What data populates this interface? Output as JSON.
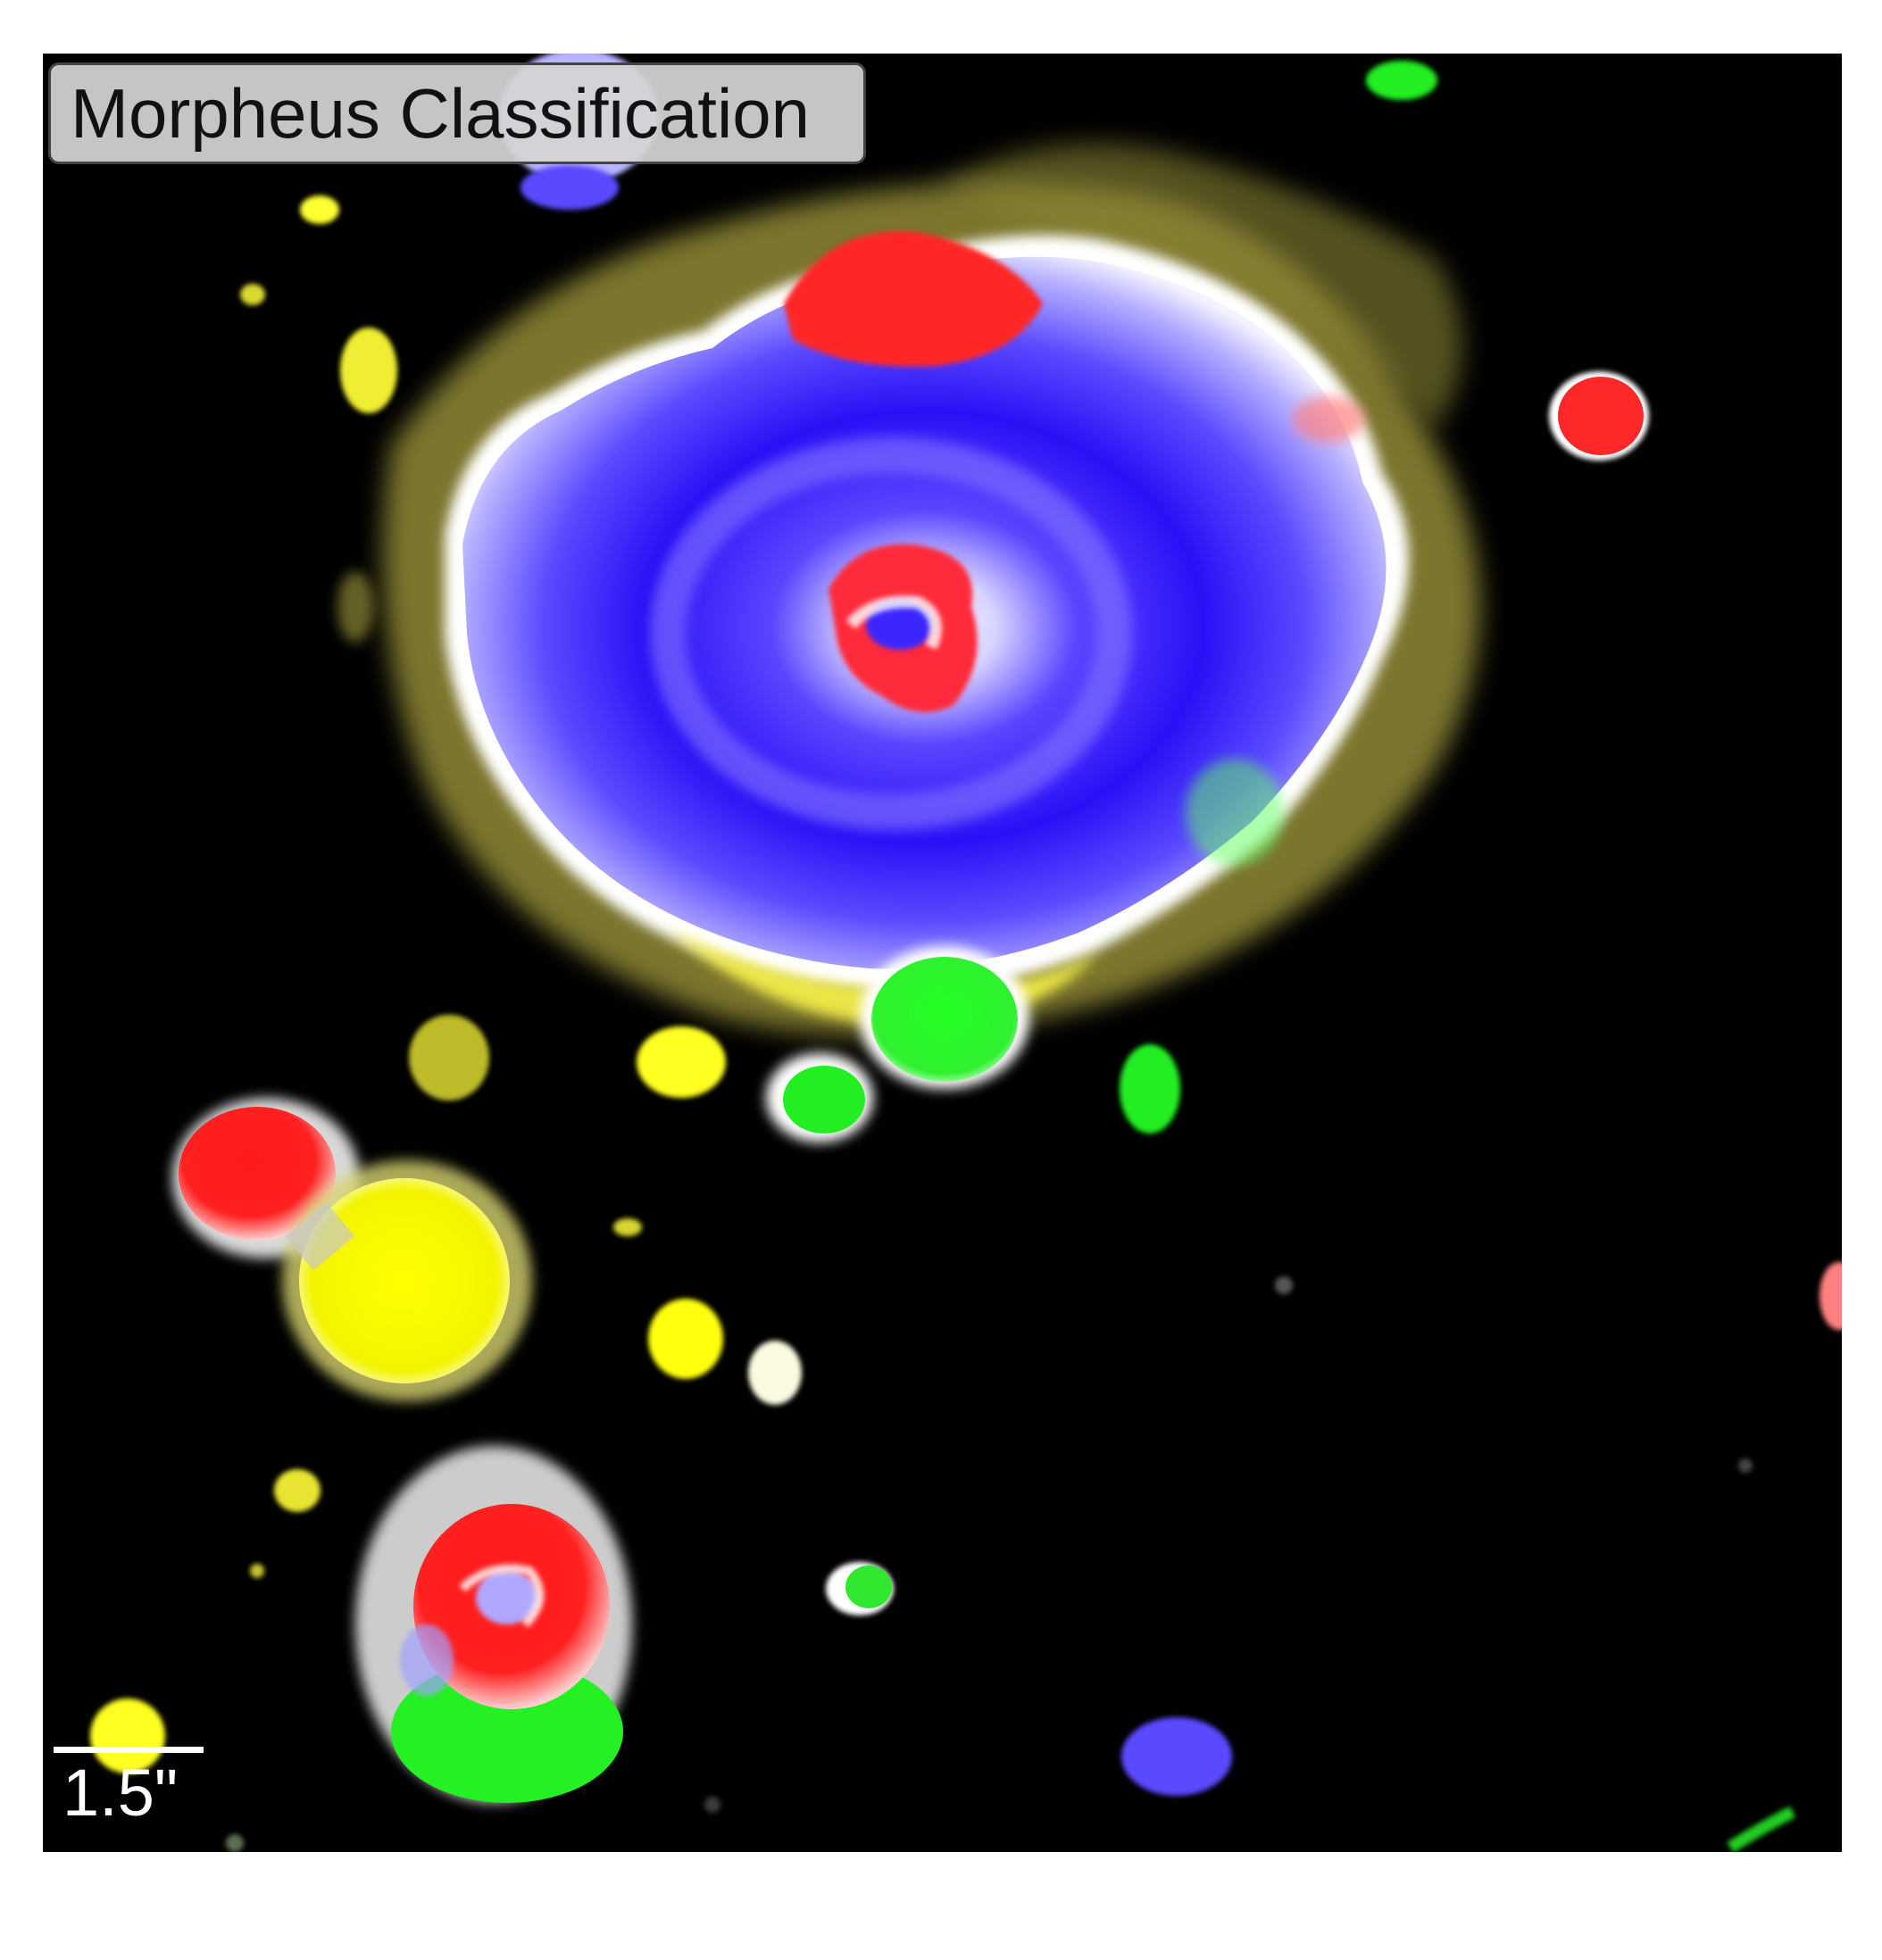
{
  "figure": {
    "title": "Morpheus Classification",
    "scale_bar_label": "1.5\"",
    "background_color": "#000000",
    "class_colors": {
      "spheroid": "#ff0000",
      "disk": "#0000ff",
      "irregular": "#00ff00",
      "point_source_compact": "#ffff00",
      "background": "#000000"
    }
  }
}
